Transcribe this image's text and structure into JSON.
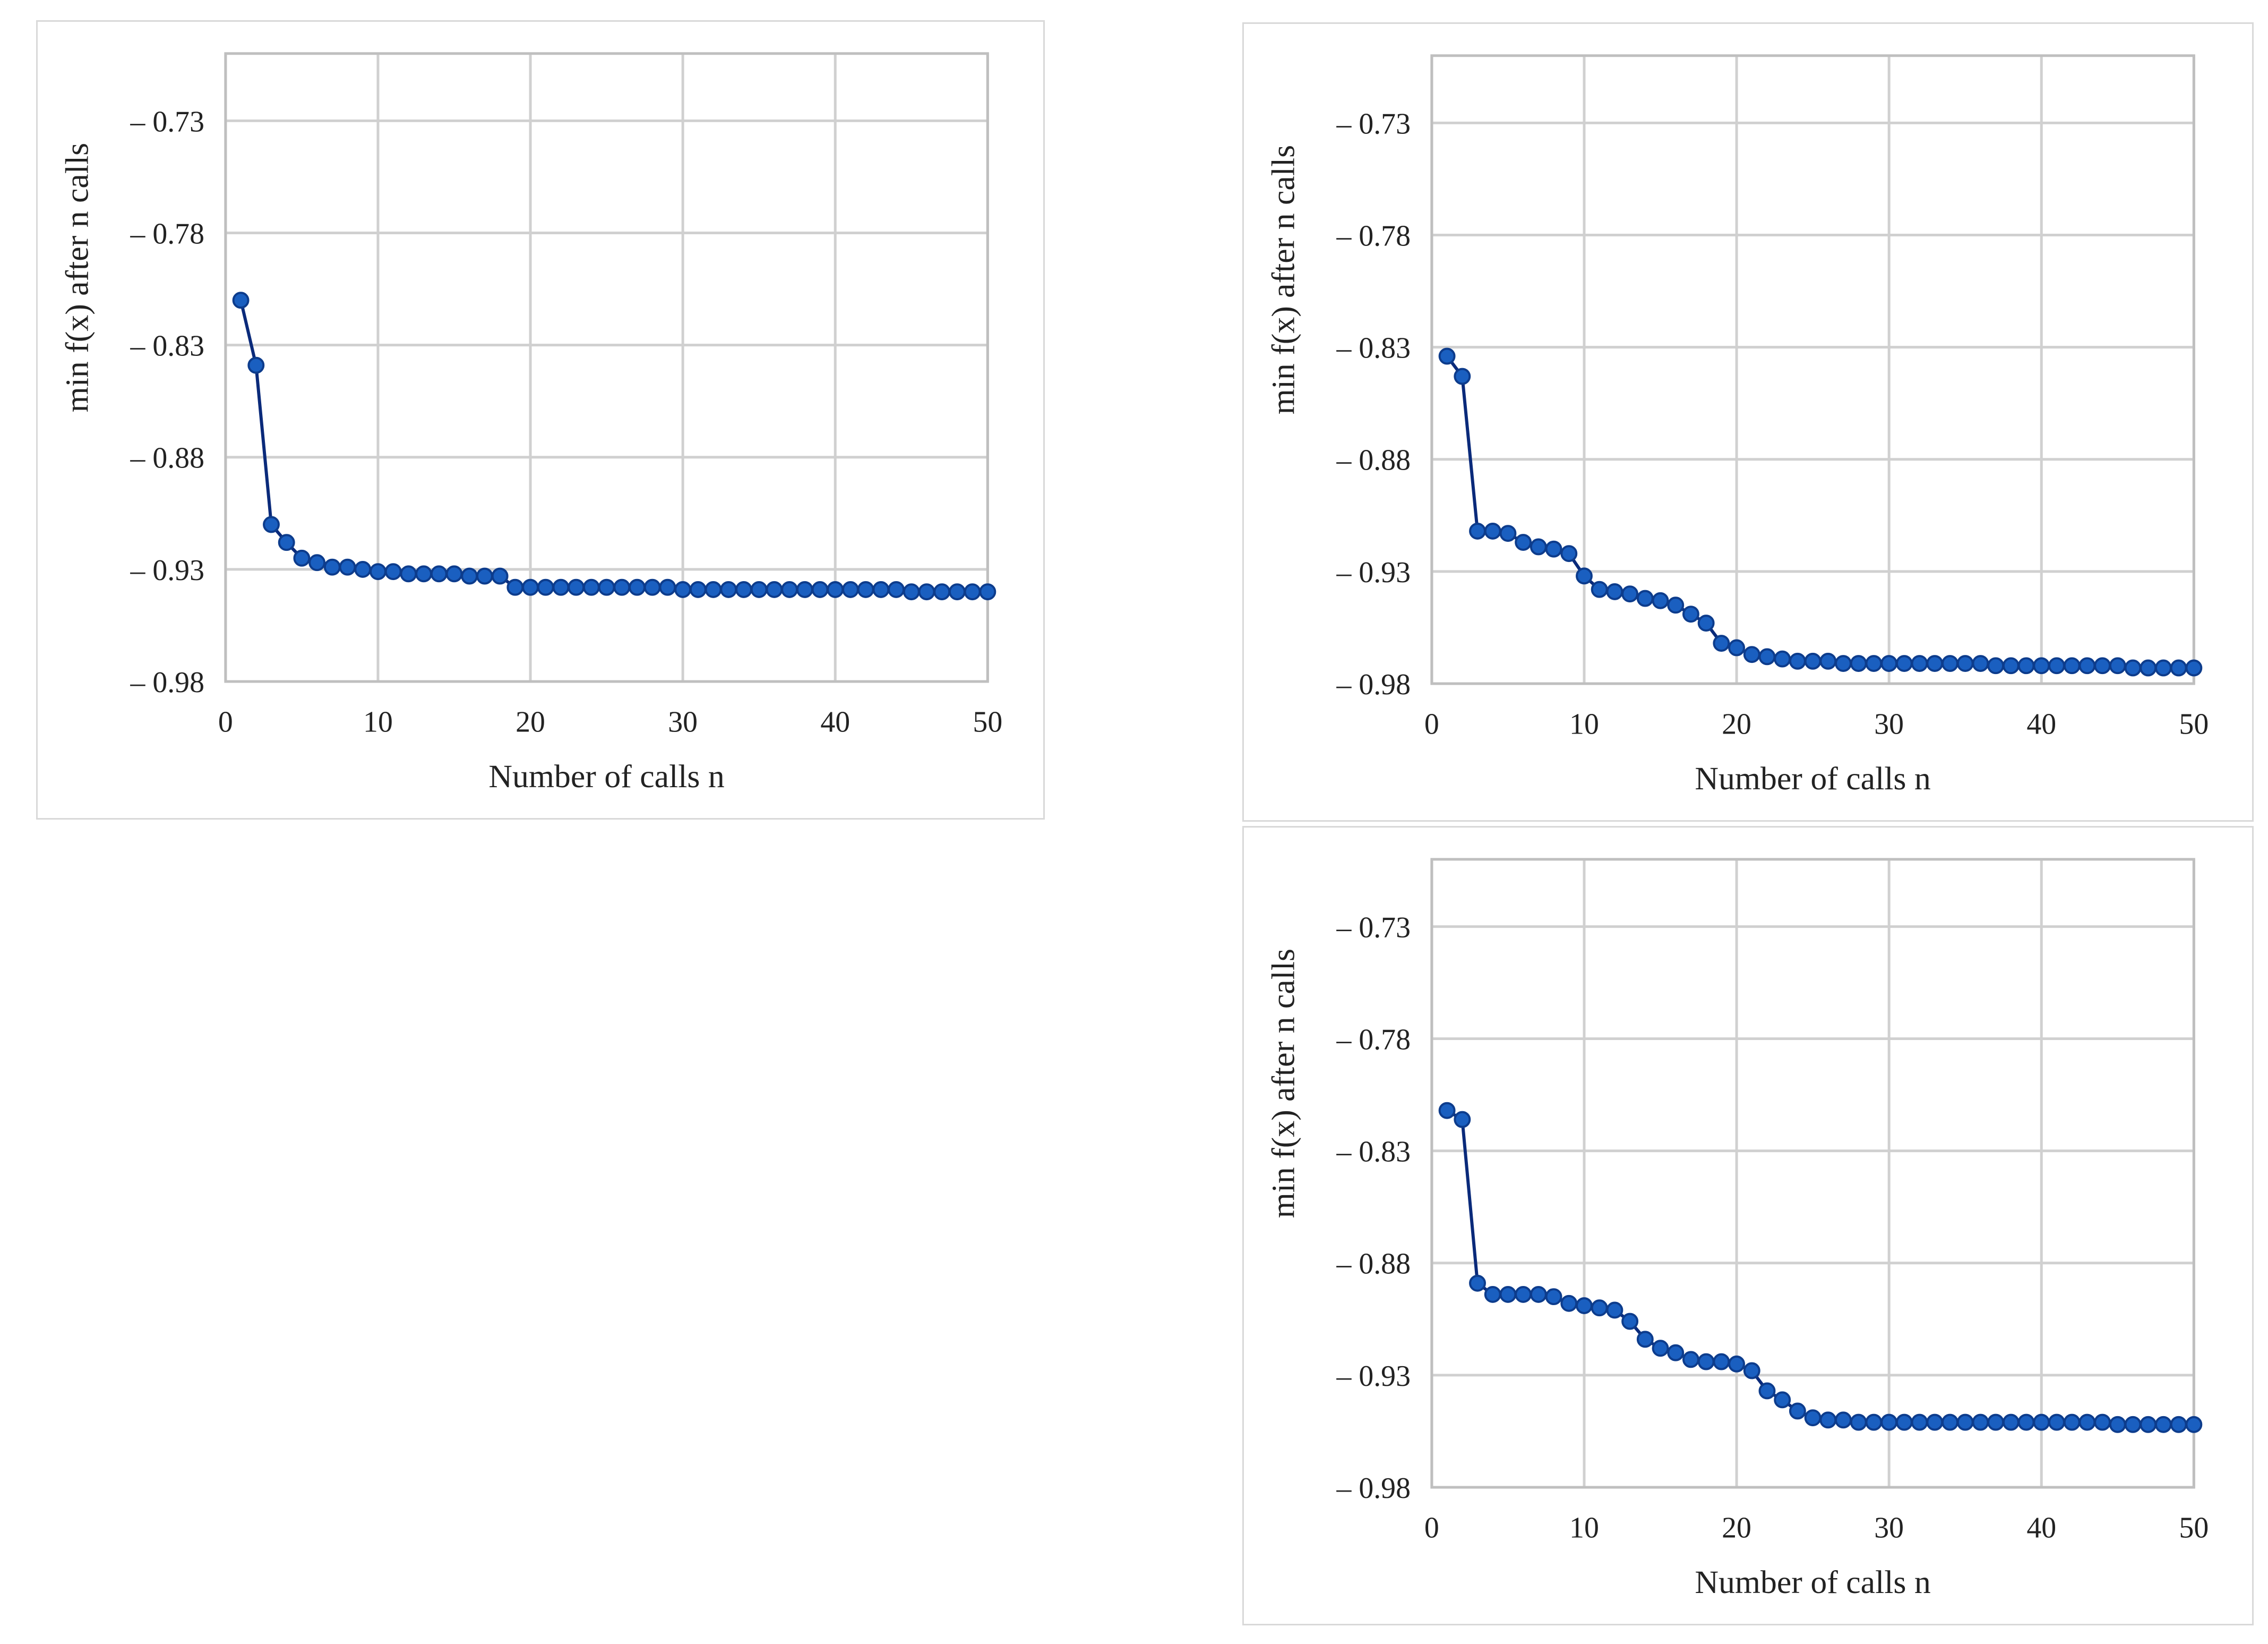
{
  "colors": {
    "line": "#0a2a7a",
    "marker": "#1a5fc0",
    "grid": "#d0d0d0"
  },
  "chart_data": [
    {
      "type": "line",
      "xlabel": "Number of calls n",
      "ylabel": "min f(x) after n calls",
      "xlim": [
        0,
        50
      ],
      "ylim": [
        -0.98,
        -0.7
      ],
      "xticks": [
        "0",
        "10",
        "20",
        "30",
        "40",
        "50"
      ],
      "yticks": [
        "– 0.73",
        "– 0.78",
        "– 0.83",
        "– 0.88",
        "– 0.93",
        "– 0.98"
      ],
      "grid": true,
      "x": [
        1,
        2,
        3,
        4,
        5,
        6,
        7,
        8,
        9,
        10,
        11,
        12,
        13,
        14,
        15,
        16,
        17,
        18,
        19,
        20,
        21,
        22,
        23,
        24,
        25,
        26,
        27,
        28,
        29,
        30,
        31,
        32,
        33,
        34,
        35,
        36,
        37,
        38,
        39,
        40,
        41,
        42,
        43,
        44,
        45,
        46,
        47,
        48,
        49,
        50
      ],
      "y": [
        -0.81,
        -0.839,
        -0.91,
        -0.918,
        -0.925,
        -0.927,
        -0.929,
        -0.929,
        -0.93,
        -0.931,
        -0.931,
        -0.932,
        -0.932,
        -0.932,
        -0.932,
        -0.933,
        -0.933,
        -0.933,
        -0.938,
        -0.938,
        -0.938,
        -0.938,
        -0.938,
        -0.938,
        -0.938,
        -0.938,
        -0.938,
        -0.938,
        -0.938,
        -0.939,
        -0.939,
        -0.939,
        -0.939,
        -0.939,
        -0.939,
        -0.939,
        -0.939,
        -0.939,
        -0.939,
        -0.939,
        -0.939,
        -0.939,
        -0.939,
        -0.939,
        -0.94,
        -0.94,
        -0.94,
        -0.94,
        -0.94,
        -0.94
      ]
    },
    {
      "type": "line",
      "xlabel": "Number of calls n",
      "ylabel": "min f(x) after n calls",
      "xlim": [
        0,
        50
      ],
      "ylim": [
        -0.98,
        -0.7
      ],
      "xticks": [
        "0",
        "10",
        "20",
        "30",
        "40",
        "50"
      ],
      "yticks": [
        "– 0.73",
        "– 0.78",
        "– 0.83",
        "– 0.88",
        "– 0.93",
        "– 0.98"
      ],
      "grid": true,
      "x": [
        1,
        2,
        3,
        4,
        5,
        6,
        7,
        8,
        9,
        10,
        11,
        12,
        13,
        14,
        15,
        16,
        17,
        18,
        19,
        20,
        21,
        22,
        23,
        24,
        25,
        26,
        27,
        28,
        29,
        30,
        31,
        32,
        33,
        34,
        35,
        36,
        37,
        38,
        39,
        40,
        41,
        42,
        43,
        44,
        45,
        46,
        47,
        48,
        49,
        50
      ],
      "y": [
        -0.834,
        -0.843,
        -0.912,
        -0.912,
        -0.913,
        -0.917,
        -0.919,
        -0.92,
        -0.922,
        -0.932,
        -0.938,
        -0.939,
        -0.94,
        -0.942,
        -0.943,
        -0.945,
        -0.949,
        -0.953,
        -0.962,
        -0.964,
        -0.967,
        -0.968,
        -0.969,
        -0.97,
        -0.97,
        -0.97,
        -0.971,
        -0.971,
        -0.971,
        -0.971,
        -0.971,
        -0.971,
        -0.971,
        -0.971,
        -0.971,
        -0.971,
        -0.972,
        -0.972,
        -0.972,
        -0.972,
        -0.972,
        -0.972,
        -0.972,
        -0.972,
        -0.972,
        -0.973,
        -0.973,
        -0.973,
        -0.973,
        -0.973
      ]
    },
    {
      "type": "line",
      "xlabel": "Number of calls n",
      "ylabel": "min f(x) after n calls",
      "xlim": [
        0,
        50
      ],
      "ylim": [
        -0.98,
        -0.7
      ],
      "xticks": [
        "0",
        "10",
        "20",
        "30",
        "40",
        "50"
      ],
      "yticks": [
        "– 0.73",
        "– 0.78",
        "– 0.83",
        "– 0.88",
        "– 0.93",
        "– 0.98"
      ],
      "grid": true,
      "x": [
        1,
        2,
        3,
        4,
        5,
        6,
        7,
        8,
        9,
        10,
        11,
        12,
        13,
        14,
        15,
        16,
        17,
        18,
        19,
        20,
        21,
        22,
        23,
        24,
        25,
        26,
        27,
        28,
        29,
        30,
        31,
        32,
        33,
        34,
        35,
        36,
        37,
        38,
        39,
        40,
        41,
        42,
        43,
        44,
        45,
        46,
        47,
        48,
        49,
        50
      ],
      "y": [
        -0.812,
        -0.816,
        -0.889,
        -0.894,
        -0.894,
        -0.894,
        -0.894,
        -0.895,
        -0.898,
        -0.899,
        -0.9,
        -0.901,
        -0.906,
        -0.914,
        -0.918,
        -0.92,
        -0.923,
        -0.924,
        -0.924,
        -0.925,
        -0.928,
        -0.937,
        -0.941,
        -0.946,
        -0.949,
        -0.95,
        -0.95,
        -0.951,
        -0.951,
        -0.951,
        -0.951,
        -0.951,
        -0.951,
        -0.951,
        -0.951,
        -0.951,
        -0.951,
        -0.951,
        -0.951,
        -0.951,
        -0.951,
        -0.951,
        -0.951,
        -0.951,
        -0.952,
        -0.952,
        -0.952,
        -0.952,
        -0.952,
        -0.952
      ]
    }
  ]
}
